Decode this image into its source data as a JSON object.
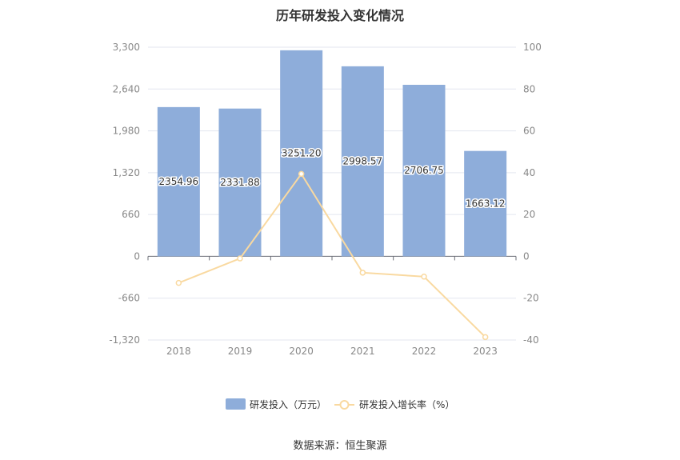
{
  "title": "历年研发投入变化情况",
  "source": "数据来源：恒生聚源",
  "chart_data": {
    "type": "bar",
    "categories": [
      "2018",
      "2019",
      "2020",
      "2021",
      "2022",
      "2023"
    ],
    "series": [
      {
        "name": "研发投入（万元）",
        "type": "bar",
        "axis": "left",
        "color": "#8eadda",
        "values": [
          2354.96,
          2331.88,
          3251.2,
          2998.57,
          2706.75,
          1663.12
        ],
        "labels": [
          "2354.96",
          "2331.88",
          "3251.20",
          "2998.57",
          "2706.75",
          "1663.12"
        ]
      },
      {
        "name": "研发投入增长率（%）",
        "type": "line",
        "axis": "right",
        "color": "#f9d9a0",
        "values": [
          -12.7,
          -1.0,
          39.4,
          -7.8,
          -9.7,
          -38.6
        ]
      }
    ],
    "left_axis": {
      "ticks": [
        "3,300",
        "2,640",
        "1,980",
        "1,320",
        "660",
        "0",
        "-660",
        "-1,320"
      ],
      "ylim": [
        -1320,
        3300
      ]
    },
    "right_axis": {
      "ticks": [
        "100",
        "80",
        "60",
        "40",
        "20",
        "0",
        "-20",
        "-40"
      ],
      "ylim": [
        -40,
        100
      ]
    },
    "grid": true,
    "legend": "bottom-center"
  }
}
